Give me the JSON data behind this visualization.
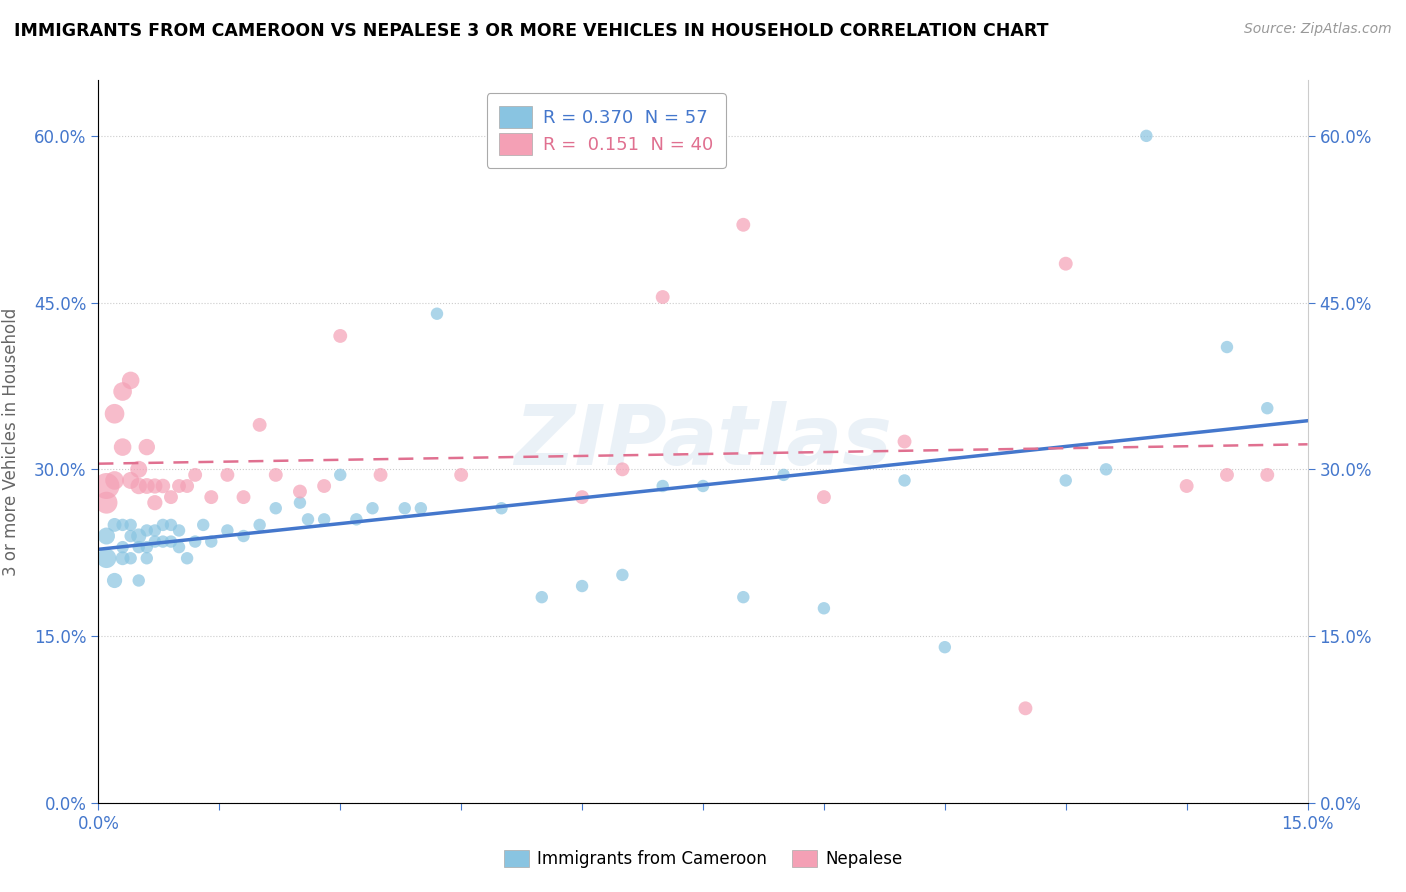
{
  "title": "IMMIGRANTS FROM CAMEROON VS NEPALESE 3 OR MORE VEHICLES IN HOUSEHOLD CORRELATION CHART",
  "source": "Source: ZipAtlas.com",
  "ylabel": "3 or more Vehicles in Household",
  "legend_label1": "Immigrants from Cameroon",
  "legend_label2": "Nepalese",
  "r1": "0.370",
  "n1": "57",
  "r2": "0.151",
  "n2": "40",
  "color_blue": "#89c4e1",
  "color_pink": "#f4a0b5",
  "color_blue_line": "#4477cc",
  "color_pink_line": "#e07090",
  "color_blue_text": "#4477cc",
  "color_pink_text": "#e07090",
  "xmin": 0.0,
  "xmax": 0.15,
  "ymin": 0.0,
  "ymax": 0.65,
  "blue_x": [
    0.001,
    0.001,
    0.002,
    0.002,
    0.003,
    0.003,
    0.003,
    0.004,
    0.004,
    0.004,
    0.005,
    0.005,
    0.005,
    0.006,
    0.006,
    0.006,
    0.007,
    0.007,
    0.008,
    0.008,
    0.009,
    0.009,
    0.01,
    0.01,
    0.011,
    0.012,
    0.013,
    0.014,
    0.016,
    0.018,
    0.02,
    0.022,
    0.025,
    0.026,
    0.028,
    0.03,
    0.032,
    0.034,
    0.038,
    0.04,
    0.042,
    0.05,
    0.055,
    0.06,
    0.065,
    0.07,
    0.075,
    0.08,
    0.085,
    0.09,
    0.1,
    0.105,
    0.12,
    0.125,
    0.13,
    0.14,
    0.145
  ],
  "blue_y": [
    0.22,
    0.24,
    0.2,
    0.25,
    0.22,
    0.25,
    0.23,
    0.24,
    0.25,
    0.22,
    0.24,
    0.23,
    0.2,
    0.245,
    0.23,
    0.22,
    0.245,
    0.235,
    0.25,
    0.235,
    0.25,
    0.235,
    0.245,
    0.23,
    0.22,
    0.235,
    0.25,
    0.235,
    0.245,
    0.24,
    0.25,
    0.265,
    0.27,
    0.255,
    0.255,
    0.295,
    0.255,
    0.265,
    0.265,
    0.265,
    0.44,
    0.265,
    0.185,
    0.195,
    0.205,
    0.285,
    0.285,
    0.185,
    0.295,
    0.175,
    0.29,
    0.14,
    0.29,
    0.3,
    0.6,
    0.41,
    0.355
  ],
  "blue_sizes": [
    200,
    150,
    120,
    100,
    100,
    80,
    80,
    80,
    80,
    80,
    120,
    80,
    80,
    80,
    80,
    80,
    80,
    80,
    80,
    80,
    80,
    80,
    80,
    80,
    80,
    80,
    80,
    80,
    80,
    80,
    80,
    80,
    80,
    80,
    80,
    80,
    80,
    80,
    80,
    80,
    80,
    80,
    80,
    80,
    80,
    80,
    80,
    80,
    80,
    80,
    80,
    80,
    80,
    80,
    80,
    80,
    80
  ],
  "pink_x": [
    0.001,
    0.001,
    0.002,
    0.002,
    0.003,
    0.003,
    0.004,
    0.004,
    0.005,
    0.005,
    0.006,
    0.006,
    0.007,
    0.007,
    0.008,
    0.009,
    0.01,
    0.011,
    0.012,
    0.014,
    0.016,
    0.018,
    0.02,
    0.022,
    0.025,
    0.028,
    0.03,
    0.035,
    0.045,
    0.06,
    0.065,
    0.07,
    0.08,
    0.09,
    0.1,
    0.115,
    0.12,
    0.135,
    0.14,
    0.145
  ],
  "pink_y": [
    0.285,
    0.27,
    0.35,
    0.29,
    0.37,
    0.32,
    0.38,
    0.29,
    0.3,
    0.285,
    0.32,
    0.285,
    0.285,
    0.27,
    0.285,
    0.275,
    0.285,
    0.285,
    0.295,
    0.275,
    0.295,
    0.275,
    0.34,
    0.295,
    0.28,
    0.285,
    0.42,
    0.295,
    0.295,
    0.275,
    0.3,
    0.455,
    0.52,
    0.275,
    0.325,
    0.085,
    0.485,
    0.285,
    0.295,
    0.295
  ],
  "pink_sizes": [
    350,
    250,
    200,
    180,
    180,
    160,
    160,
    150,
    150,
    140,
    140,
    130,
    120,
    120,
    110,
    100,
    100,
    100,
    100,
    100,
    100,
    100,
    100,
    100,
    100,
    100,
    100,
    100,
    100,
    100,
    100,
    100,
    100,
    100,
    100,
    100,
    100,
    100,
    100,
    100
  ]
}
